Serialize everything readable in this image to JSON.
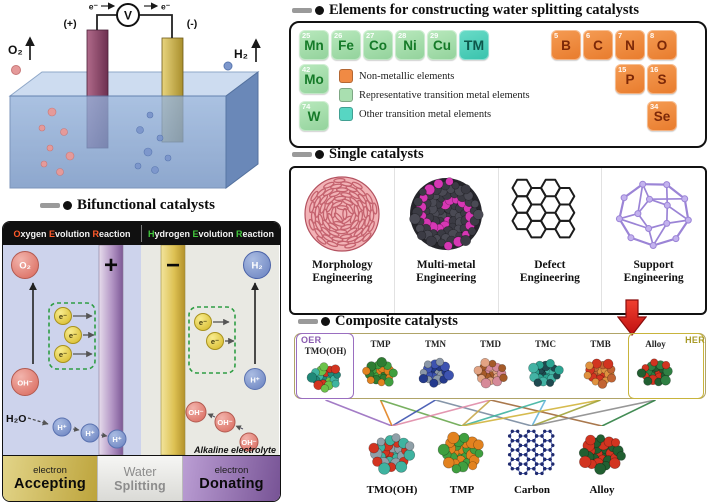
{
  "cell": {
    "voltmeter_label": "V",
    "anode_sign": "(+)",
    "cathode_sign": "(-)",
    "electron_left": "e⁻",
    "electron_right": "e⁻",
    "oxygen_label": "O₂",
    "hydrogen_label": "H₂"
  },
  "elements_panel": {
    "title": "Elements for constructing water splitting catalysts",
    "tiles": [
      {
        "num": "25",
        "sym": "Mn",
        "type": "tm",
        "r": 0,
        "c": 0
      },
      {
        "num": "26",
        "sym": "Fe",
        "type": "tm",
        "r": 0,
        "c": 1
      },
      {
        "num": "27",
        "sym": "Co",
        "type": "tm",
        "r": 0,
        "c": 2
      },
      {
        "num": "28",
        "sym": "Ni",
        "type": "tm",
        "r": 0,
        "c": 3
      },
      {
        "num": "29",
        "sym": "Cu",
        "type": "tm",
        "r": 0,
        "c": 4
      },
      {
        "num": "",
        "sym": "TM",
        "type": "other",
        "r": 0,
        "c": 5
      },
      {
        "num": "42",
        "sym": "Mo",
        "type": "tm",
        "r": 1,
        "c": 0
      },
      {
        "num": "74",
        "sym": "W",
        "type": "tm",
        "r": 2,
        "c": 0
      },
      {
        "num": "5",
        "sym": "B",
        "type": "nonmetal",
        "r": 0,
        "c": 8
      },
      {
        "num": "6",
        "sym": "C",
        "type": "nonmetal",
        "r": 0,
        "c": 9
      },
      {
        "num": "7",
        "sym": "N",
        "type": "nonmetal",
        "r": 0,
        "c": 10
      },
      {
        "num": "8",
        "sym": "O",
        "type": "nonmetal",
        "r": 0,
        "c": 11
      },
      {
        "num": "15",
        "sym": "P",
        "type": "nonmetal",
        "r": 1,
        "c": 10
      },
      {
        "num": "16",
        "sym": "S",
        "type": "nonmetal",
        "r": 1,
        "c": 11
      },
      {
        "num": "34",
        "sym": "Se",
        "type": "nonmetal",
        "r": 2,
        "c": 11
      }
    ],
    "legend": [
      {
        "swatch": "#f08a44",
        "label": "Non-metallic elements"
      },
      {
        "swatch": "#a9dfb0",
        "label": "Representative transition metal elements"
      },
      {
        "swatch": "#57d6c3",
        "label": "Other transition metal elements"
      }
    ]
  },
  "single_panel": {
    "title": "Single catalysts",
    "items": [
      {
        "label_line1": "Morphology",
        "label_line2": "Engineering",
        "structure": "nanoflower",
        "palette": [
          "#f2b2b6",
          "#c4626e",
          "#b45260"
        ]
      },
      {
        "label_line1": "Multi-metal",
        "label_line2": "Engineering",
        "structure": "sphere-cluster",
        "palette": [
          "#3b3b44",
          "#4a4a54",
          "#3b3b44",
          "#d637b4"
        ]
      },
      {
        "label_line1": "Defect",
        "label_line2": "Engineering",
        "structure": "honeycomb",
        "palette": [
          "#1c1c1c"
        ]
      },
      {
        "label_line1": "Support",
        "label_line2": "Engineering",
        "structure": "cage",
        "palette": [
          "#9b84d6",
          "#c3b2ee"
        ]
      }
    ]
  },
  "composite_panel": {
    "title": "Composite catalysts",
    "oer_label": "OER",
    "her_label": "HER",
    "top_items": [
      {
        "label": "TMO(OH)",
        "palette": [
          "#3fb3a0",
          "#1f8878",
          "#d23420",
          "#6cc24a"
        ]
      },
      {
        "label": "TMP",
        "palette": [
          "#3f9f3f",
          "#e2821f",
          "#2e7d32"
        ]
      },
      {
        "label": "TMN",
        "palette": [
          "#243a8c",
          "#8a97a8",
          "#3d53b0"
        ]
      },
      {
        "label": "TMD",
        "palette": [
          "#e2a383",
          "#a55a28",
          "#d68a99"
        ]
      },
      {
        "label": "TMC",
        "palette": [
          "#2ba391",
          "#1f4a50",
          "#43b3a4"
        ]
      },
      {
        "label": "TMB",
        "palette": [
          "#c26433",
          "#e0923f",
          "#d23420"
        ]
      },
      {
        "label": "Alloy",
        "palette": [
          "#215f31",
          "#d23420",
          "#2f8043"
        ]
      }
    ],
    "bottom_items": [
      {
        "label": "TMO(OH)",
        "structure": "cluster",
        "palette": [
          "#3fb3a0",
          "#d23420",
          "#8fa0a8"
        ]
      },
      {
        "label": "TMP",
        "structure": "cluster",
        "palette": [
          "#3f9f3f",
          "#e2821f"
        ]
      },
      {
        "label": "Carbon",
        "structure": "carbon-net",
        "palette": [
          "#1f2a6e",
          "#3d53b0"
        ]
      },
      {
        "label": "Alloy",
        "structure": "cluster",
        "palette": [
          "#215f31",
          "#d23420"
        ]
      }
    ],
    "connections": [
      {
        "from": 0,
        "to": 0,
        "color": "#9a6ec0"
      },
      {
        "from": 1,
        "to": 0,
        "color": "#e2821f"
      },
      {
        "from": 1,
        "to": 1,
        "color": "#6aa84f"
      },
      {
        "from": 2,
        "to": 0,
        "color": "#3d53b0"
      },
      {
        "from": 2,
        "to": 2,
        "color": "#7a8ba0"
      },
      {
        "from": 3,
        "to": 0,
        "color": "#e08ca8"
      },
      {
        "from": 3,
        "to": 1,
        "color": "#c8a84a"
      },
      {
        "from": 3,
        "to": 3,
        "color": "#a06a3a"
      },
      {
        "from": 4,
        "to": 1,
        "color": "#3fb3a0"
      },
      {
        "from": 4,
        "to": 2,
        "color": "#64b4dc"
      },
      {
        "from": 5,
        "to": 1,
        "color": "#d2b43c"
      },
      {
        "from": 5,
        "to": 2,
        "color": "#a0a43a"
      },
      {
        "from": 6,
        "to": 2,
        "color": "#8c8c8c"
      },
      {
        "from": 6,
        "to": 3,
        "color": "#2f8043"
      }
    ],
    "accents": {
      "oer_color": "#8a5bb0",
      "her_color": "#a89a28",
      "box_border": "#b0a468",
      "oer_box_border": "#9a6ec0",
      "her_box_border": "#c8b43c",
      "arrow_color": "#e01818"
    }
  },
  "bifunctional_panel": {
    "title": "Bifunctional catalysts",
    "oer_header": {
      "words": [
        "Oxygen",
        "Evolution",
        "Reaction"
      ],
      "accent": "#ff5a2a"
    },
    "her_header": {
      "words": [
        "Hydrogen",
        "Evolution",
        "Reaction"
      ],
      "accent": "#42c83c"
    },
    "anode_sign": "+",
    "cathode_sign": "−",
    "species": {
      "o2": "O₂",
      "h2": "H₂",
      "oh": "OH⁻",
      "h": "H⁺",
      "e": "e⁻",
      "h2o": "H₂O"
    },
    "electrolyte_label": "Alkaline electrolyte",
    "footer": [
      {
        "line1": "electron",
        "line2": "Accepting"
      },
      {
        "line1": "Water",
        "line2": "Splitting"
      },
      {
        "line1": "electron",
        "line2": "Donating"
      }
    ]
  }
}
